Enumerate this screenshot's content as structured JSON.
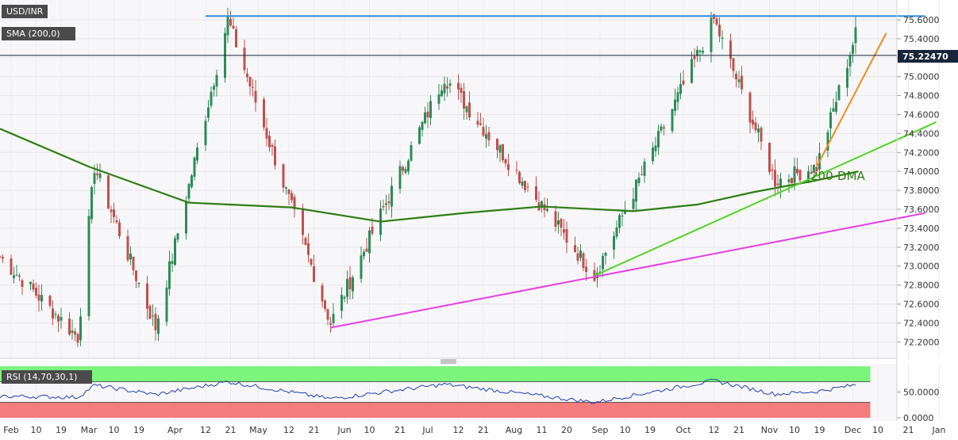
{
  "legend": {
    "symbol": "USD/INR",
    "sma_label": "SMA (200,0)",
    "rsi_label": "RSI (14,70,30,1)"
  },
  "annotations": {
    "dma_label": "200-DMA",
    "last_price": "75.22470"
  },
  "colors": {
    "bull": "#2e8b57",
    "bear": "#c0504d",
    "sma": "#2e7d15",
    "resistance": "#2f8fe0",
    "support_short": "#f08c1a",
    "support_mid": "#55d12a",
    "support_long": "#e63ee6",
    "rsi_line": "#1f3fb4",
    "rsi_overbought_zone": "#7cf57c",
    "rsi_oversold_zone": "#f57c7c"
  },
  "chart_data": [
    {
      "type": "candlestick",
      "title": "USD/INR",
      "ylim": [
        72.0,
        75.8
      ],
      "yticks": [
        "75.6000",
        "75.4000",
        "75.2000",
        "75.0000",
        "74.8000",
        "74.6000",
        "74.4000",
        "74.2000",
        "74.0000",
        "73.8000",
        "73.6000",
        "73.4000",
        "73.2000",
        "73.0000",
        "72.8000",
        "72.6000",
        "72.4000",
        "72.2000"
      ],
      "xticks": [
        "Feb",
        "10",
        "19",
        "Mar",
        "10",
        "19",
        "Apr",
        "12",
        "21",
        "May",
        "12",
        "21",
        "Jun",
        "10",
        "21",
        "Jul",
        "12",
        "21",
        "Aug",
        "11",
        "20",
        "Sep",
        "10",
        "19",
        "Oct",
        "12",
        "21",
        "Nov",
        "10",
        "19",
        "Dec",
        "10",
        "21",
        "Jan"
      ],
      "last_value": 75.2247,
      "swing_points": [
        {
          "date": "2021-01-28",
          "value": 73.1
        },
        {
          "date": "2021-02-25",
          "value": 72.25
        },
        {
          "date": "2021-03-03",
          "value": 74.05
        },
        {
          "date": "2021-03-25",
          "value": 72.35
        },
        {
          "date": "2021-04-20",
          "value": 75.6
        },
        {
          "date": "2021-05-27",
          "value": 72.4
        },
        {
          "date": "2021-07-07",
          "value": 75.0
        },
        {
          "date": "2021-08-30",
          "value": 72.9
        },
        {
          "date": "2021-10-12",
          "value": 75.6
        },
        {
          "date": "2021-11-03",
          "value": 73.9
        },
        {
          "date": "2021-11-18",
          "value": 74.05
        },
        {
          "date": "2021-12-02",
          "value": 75.45
        },
        {
          "date": "2021-12-03",
          "value": 75.22
        }
      ],
      "sma_200": [
        {
          "date": "2021-01-28",
          "value": 74.45
        },
        {
          "date": "2021-03-01",
          "value": 74.05
        },
        {
          "date": "2021-04-06",
          "value": 73.67
        },
        {
          "date": "2021-05-13",
          "value": 73.62
        },
        {
          "date": "2021-06-14",
          "value": 73.47
        },
        {
          "date": "2021-07-14",
          "value": 73.56
        },
        {
          "date": "2021-08-11",
          "value": 73.63
        },
        {
          "date": "2021-09-13",
          "value": 73.58
        },
        {
          "date": "2021-10-06",
          "value": 73.65
        },
        {
          "date": "2021-10-26",
          "value": 73.78
        },
        {
          "date": "2021-11-17",
          "value": 73.9
        },
        {
          "date": "2021-12-03",
          "value": 74.0
        }
      ],
      "trendlines": [
        {
          "role": "resistance",
          "points": [
            {
              "date": "2021-04-12",
              "value": 75.64
            },
            {
              "date": "2021-12-27",
              "value": 75.64
            }
          ]
        },
        {
          "role": "support_short",
          "points": [
            {
              "date": "2021-11-18",
              "value": 74.05
            },
            {
              "date": "2021-12-13",
              "value": 75.46
            }
          ]
        },
        {
          "role": "support_mid",
          "points": [
            {
              "date": "2021-08-30",
              "value": 72.9
            },
            {
              "date": "2021-12-31",
              "value": 74.52
            }
          ]
        },
        {
          "role": "support_long",
          "points": [
            {
              "date": "2021-05-27",
              "value": 72.35
            },
            {
              "date": "2021-12-27",
              "value": 73.56
            }
          ]
        }
      ]
    },
    {
      "type": "line",
      "title": "RSI (14,70,30,1)",
      "ylim": [
        0,
        100
      ],
      "yticks": [
        "50.0000",
        "0.0000"
      ],
      "levels": [
        70,
        30
      ],
      "values": [
        {
          "date": "2021-01-28",
          "value": 42
        },
        {
          "date": "2021-02-25",
          "value": 40
        },
        {
          "date": "2021-03-03",
          "value": 63
        },
        {
          "date": "2021-03-25",
          "value": 45
        },
        {
          "date": "2021-04-20",
          "value": 70
        },
        {
          "date": "2021-05-27",
          "value": 37
        },
        {
          "date": "2021-07-07",
          "value": 65
        },
        {
          "date": "2021-08-30",
          "value": 30
        },
        {
          "date": "2021-10-12",
          "value": 72
        },
        {
          "date": "2021-11-03",
          "value": 46
        },
        {
          "date": "2021-11-18",
          "value": 51
        },
        {
          "date": "2021-12-03",
          "value": 65
        }
      ]
    }
  ]
}
